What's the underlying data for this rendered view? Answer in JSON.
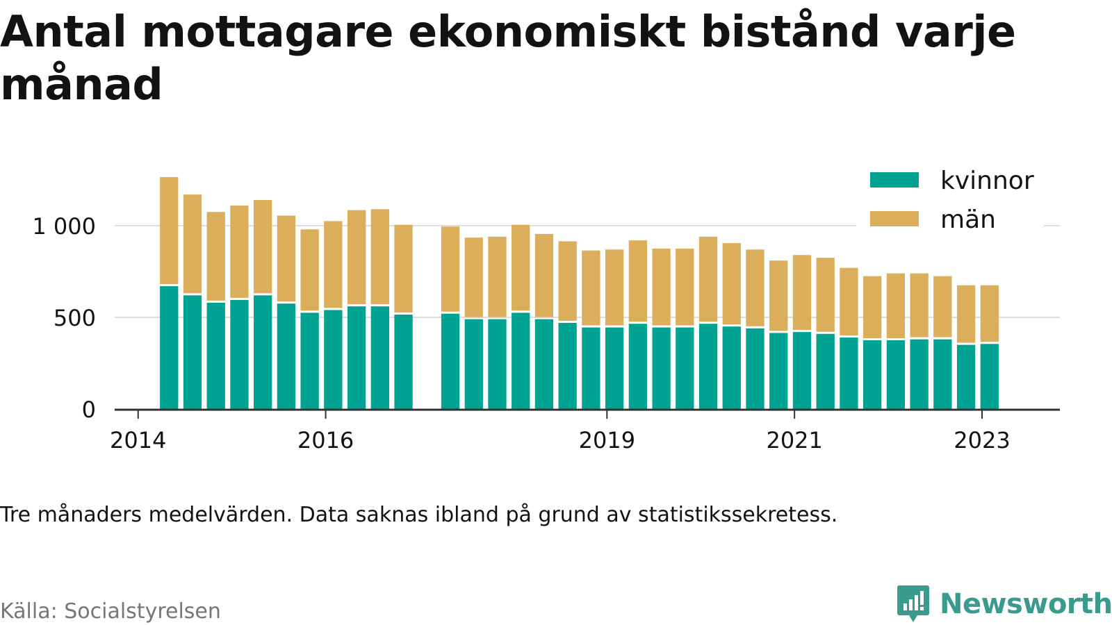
{
  "title": "Antal mottagare ekonomiskt bistånd varje månad",
  "note": "Tre månaders medelvärden. Data saknas ibland på grund av statistikssekretess.",
  "source": "Källa: Socialstyrelsen",
  "brand": "Newsworthy",
  "colors": {
    "kvinnor": "#00a391",
    "man": "#dbae5c",
    "axis": "#333333",
    "grid": "#dddddd",
    "brand": "#3a9a8d"
  },
  "chart_data": {
    "type": "bar",
    "stacked": true,
    "ylim": [
      0,
      1300
    ],
    "yticks": [
      0,
      500,
      1000
    ],
    "ytick_labels": [
      "0",
      "500",
      "1 000"
    ],
    "xticks": [
      2014.0,
      2016.0,
      2019.0,
      2021.0,
      2023.0
    ],
    "xtick_labels": [
      "2014",
      "2016",
      "2019",
      "2021",
      "2023"
    ],
    "grid": true,
    "legend_position": "top-right",
    "x": [
      2014.33,
      2014.58,
      2014.83,
      2015.08,
      2015.33,
      2015.58,
      2015.83,
      2016.08,
      2016.33,
      2016.58,
      2016.83,
      2017.33,
      2017.58,
      2017.83,
      2018.08,
      2018.33,
      2018.58,
      2018.83,
      2019.08,
      2019.33,
      2019.58,
      2019.83,
      2020.08,
      2020.33,
      2020.58,
      2020.83,
      2021.08,
      2021.33,
      2021.58,
      2021.83,
      2022.08,
      2022.33,
      2022.58,
      2022.83,
      2023.08
    ],
    "series": [
      {
        "name": "kvinnor",
        "values": [
          670,
          620,
          580,
          595,
          620,
          575,
          525,
          540,
          560,
          560,
          515,
          520,
          490,
          490,
          525,
          490,
          470,
          445,
          445,
          465,
          445,
          445,
          465,
          450,
          440,
          415,
          420,
          410,
          390,
          375,
          375,
          380,
          380,
          350,
          355
        ]
      },
      {
        "name": "män",
        "values": [
          595,
          550,
          495,
          515,
          520,
          480,
          455,
          485,
          525,
          530,
          490,
          475,
          445,
          450,
          480,
          465,
          445,
          420,
          425,
          455,
          430,
          430,
          475,
          455,
          430,
          395,
          420,
          415,
          380,
          350,
          365,
          360,
          345,
          325,
          320
        ]
      }
    ]
  }
}
